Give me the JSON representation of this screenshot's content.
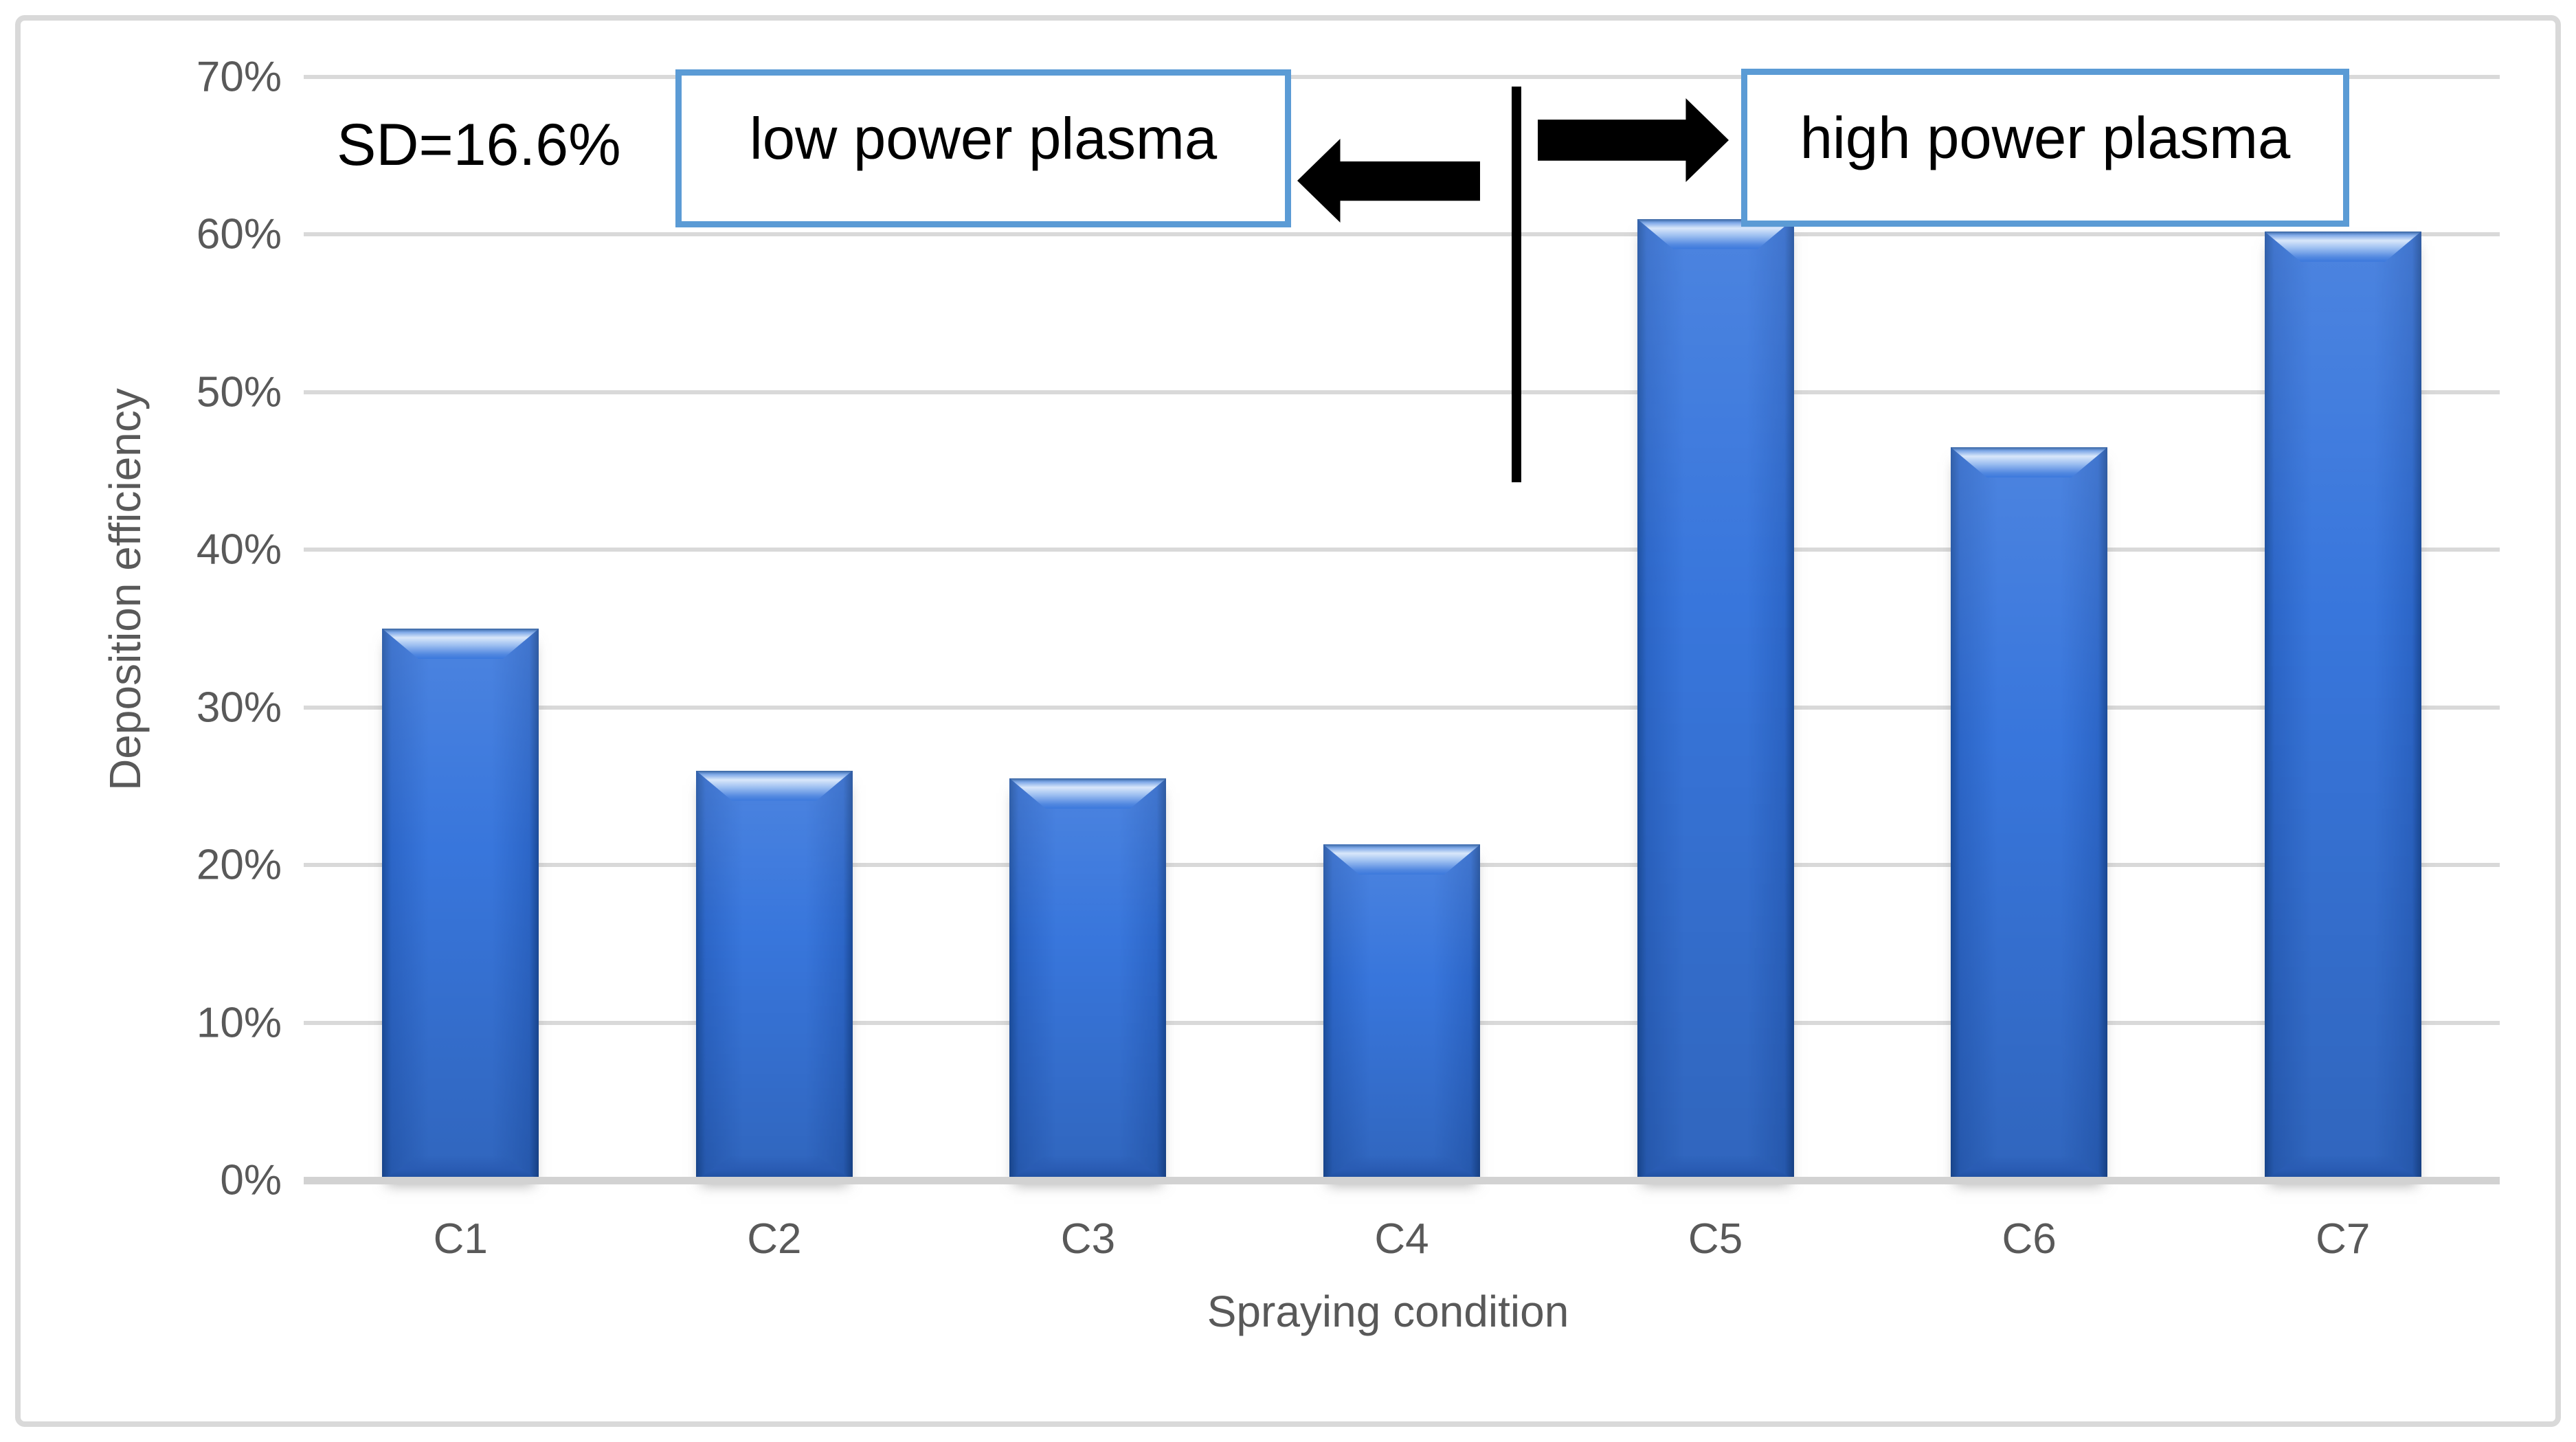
{
  "chart_data": {
    "type": "bar",
    "categories": [
      "C1",
      "C2",
      "C3",
      "C4",
      "C5",
      "C6",
      "C7"
    ],
    "values": [
      35,
      26,
      25.5,
      21.3,
      61,
      46.5,
      60.2
    ],
    "title": "",
    "xlabel": "Spraying condition",
    "ylabel": "Deposition efficiency",
    "ylim": [
      0,
      70
    ],
    "ytick_step": 10,
    "ytick_labels": [
      "0%",
      "10%",
      "20%",
      "30%",
      "40%",
      "50%",
      "60%",
      "70%"
    ],
    "grid": true,
    "legend": "none",
    "bar_color": "#3876DC"
  },
  "annotations": {
    "sd_label": "SD=16.6%",
    "low_power_label": "low power plasma",
    "high_power_label": "high power plasma",
    "divider": "vertical line between C4 and C5",
    "arrows": [
      "left arrow pointing to low power side",
      "right arrow pointing to high power side"
    ]
  },
  "colors": {
    "bar_blue": "#3876DC",
    "bar_edge_dark": "#1C4F9F",
    "bevel_highlight": "#D9E7FA",
    "annotation_border_blue": "#5B9BD5",
    "gridline_gray": "#D9D9D9",
    "axis_text_gray": "#595959",
    "annotation_text": "#000000",
    "frame_border": "#D9D9D9",
    "background": "#FFFFFF"
  }
}
